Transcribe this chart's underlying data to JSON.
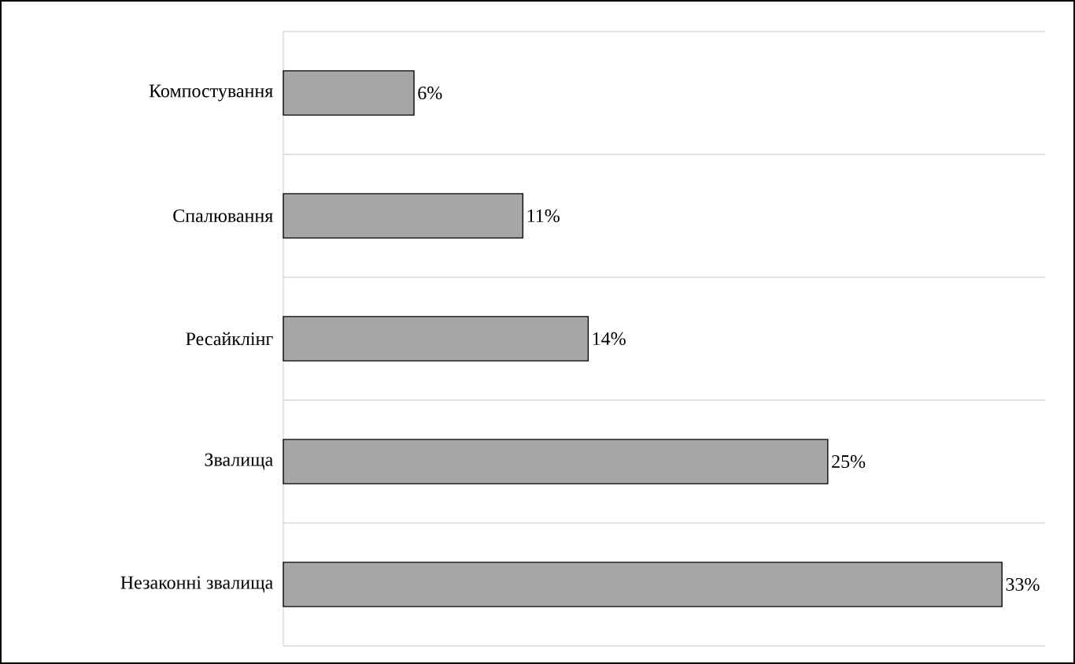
{
  "chart_data": {
    "type": "bar",
    "orientation": "horizontal",
    "categories": [
      "Компостування",
      "Спалювання",
      "Ресайклінг",
      "Звалища",
      "Незаконні звалища"
    ],
    "values": [
      6,
      11,
      14,
      25,
      33
    ],
    "value_labels": [
      "6%",
      "11%",
      "14%",
      "25%",
      "33%"
    ],
    "color": "#a6a6a6",
    "grid": "y"
  }
}
